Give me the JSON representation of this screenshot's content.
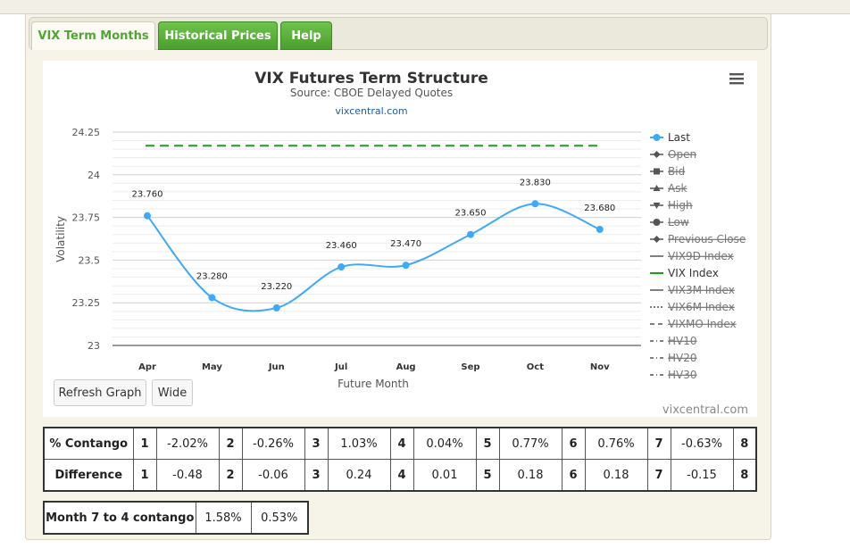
{
  "tabs": [
    {
      "label": "VIX Term Months"
    },
    {
      "label": "Historical Prices"
    },
    {
      "label": "Help"
    }
  ],
  "chart_data": {
    "type": "line",
    "title": "VIX Futures Term Structure",
    "subtitle": "Source: CBOE Delayed Quotes",
    "credit_top": "vixcentral.com",
    "credit_bottom": "vixcentral.com",
    "xlabel": "Future Month",
    "ylabel": "Volatility",
    "categories": [
      "Apr",
      "May",
      "Jun",
      "Jul",
      "Aug",
      "Sep",
      "Oct",
      "Nov"
    ],
    "ylim": [
      23,
      24.25
    ],
    "yticks": [
      23,
      23.25,
      23.5,
      23.75,
      24,
      24.25
    ],
    "ytick_labels": [
      "23",
      "23.25",
      "23.5",
      "23.75",
      "24",
      "24.25"
    ],
    "series": [
      {
        "name": "Last",
        "values": [
          23.76,
          23.28,
          23.22,
          23.46,
          23.47,
          23.65,
          23.83,
          23.68
        ],
        "labels": [
          "23.760",
          "23.280",
          "23.220",
          "23.460",
          "23.470",
          "23.650",
          "23.830",
          "23.680"
        ],
        "color": "#3fa9f5"
      },
      {
        "name": "VIX Index",
        "value": 24.17,
        "color": "#1e9e1e",
        "style": "dashed"
      }
    ],
    "legend": {
      "placement": "right",
      "items": [
        {
          "name": "Last",
          "active": true,
          "symbol": "circle-line",
          "color": "#3fa9f5"
        },
        {
          "name": "Open",
          "active": false,
          "symbol": "diamond-line",
          "color": "#555555"
        },
        {
          "name": "Bid",
          "active": false,
          "symbol": "square-line",
          "color": "#555555"
        },
        {
          "name": "Ask",
          "active": false,
          "symbol": "triangle-line",
          "color": "#555555"
        },
        {
          "name": "High",
          "active": false,
          "symbol": "triangle-down-line",
          "color": "#555555"
        },
        {
          "name": "Low",
          "active": false,
          "symbol": "circle-line",
          "color": "#555555"
        },
        {
          "name": "Previous Close",
          "active": false,
          "symbol": "diamond-line",
          "color": "#555555"
        },
        {
          "name": "VIX9D Index",
          "active": false,
          "symbol": "line",
          "color": "#555555"
        },
        {
          "name": "VIX Index",
          "active": true,
          "symbol": "line",
          "color": "#1e9e1e"
        },
        {
          "name": "VIX3M Index",
          "active": false,
          "symbol": "line",
          "color": "#555555"
        },
        {
          "name": "VIX6M Index",
          "active": false,
          "symbol": "dotted-line",
          "color": "#555555"
        },
        {
          "name": "VIXMO Index",
          "active": false,
          "symbol": "dash-line",
          "color": "#555555"
        },
        {
          "name": "HV10",
          "active": false,
          "symbol": "dashdot-line",
          "color": "#555555"
        },
        {
          "name": "HV20",
          "active": false,
          "symbol": "dashdot-line",
          "color": "#555555"
        },
        {
          "name": "HV30",
          "active": false,
          "symbol": "dashdot-line",
          "color": "#555555"
        }
      ]
    },
    "grid": true,
    "line_color": "#3fa9f5",
    "vix_color": "#1e9e1e"
  },
  "menu_icon": "hamburger-menu-icon",
  "buttons": {
    "refresh": "Refresh Graph",
    "wide": "Wide"
  },
  "contango_table": {
    "rows": [
      {
        "label": "% Contango",
        "cells": [
          {
            "idx": "1",
            "val": "-2.02%"
          },
          {
            "idx": "2",
            "val": "-0.26%"
          },
          {
            "idx": "3",
            "val": "1.03%"
          },
          {
            "idx": "4",
            "val": "0.04%"
          },
          {
            "idx": "5",
            "val": "0.77%"
          },
          {
            "idx": "6",
            "val": "0.76%"
          },
          {
            "idx": "7",
            "val": "-0.63%"
          },
          {
            "idx": "8",
            "val": ""
          }
        ]
      },
      {
        "label": "Difference",
        "cells": [
          {
            "idx": "1",
            "val": "-0.48"
          },
          {
            "idx": "2",
            "val": "-0.06"
          },
          {
            "idx": "3",
            "val": "0.24"
          },
          {
            "idx": "4",
            "val": "0.01"
          },
          {
            "idx": "5",
            "val": "0.18"
          },
          {
            "idx": "6",
            "val": "0.18"
          },
          {
            "idx": "7",
            "val": "-0.15"
          },
          {
            "idx": "8",
            "val": ""
          }
        ]
      }
    ]
  },
  "month_table": {
    "label": "Month 7 to 4 contango",
    "v1": "1.58%",
    "v2": "0.53%"
  }
}
